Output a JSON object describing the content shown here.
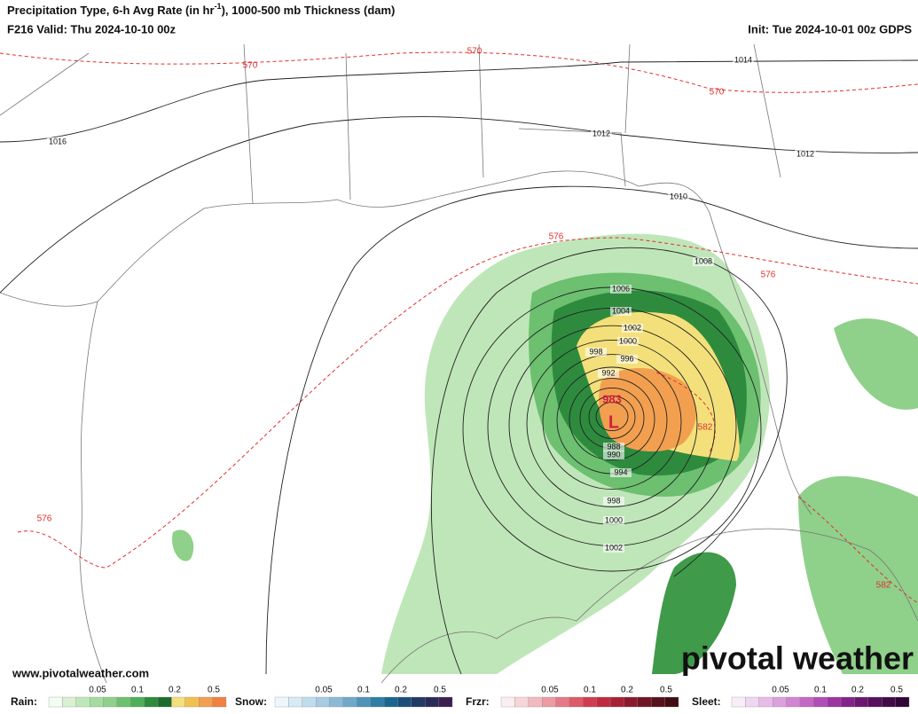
{
  "header": {
    "title": {
      "before": "Precipitation Type, 6-h Avg Rate (in hr",
      "superscript": "-1",
      "after": "), 1000-500 mb Thickness (dam)"
    },
    "valid": "F216 Valid: Thu 2024-10-10 00z",
    "init": "Init: Tue 2024-10-01 00z GDPS"
  },
  "map": {
    "isobar_labels": [
      "1016",
      "1014",
      "1012",
      "1012",
      "1010",
      "1008",
      "1006",
      "1004",
      "1002",
      "1000",
      "998",
      "996",
      "992",
      "988",
      "990",
      "994",
      "998",
      "1000",
      "1002"
    ],
    "thickness_labels": [
      "570",
      "570",
      "570",
      "576",
      "576",
      "576",
      "582",
      "582"
    ],
    "low_pressure": "983",
    "low_symbol": "L"
  },
  "footer": {
    "website": "www.pivotalweather.com",
    "logo": "pivotal weather"
  },
  "legend": [
    {
      "label": "Rain:",
      "ticks": [
        "0.05",
        "0.1",
        "0.2",
        "0.5"
      ]
    },
    {
      "label": "Snow:",
      "ticks": [
        "0.05",
        "0.1",
        "0.2",
        "0.5"
      ]
    },
    {
      "label": "Frzr:",
      "ticks": [
        "0.05",
        "0.1",
        "0.2",
        "0.5"
      ]
    },
    {
      "label": "Sleet:",
      "ticks": [
        "0.05",
        "0.1",
        "0.2",
        "0.5"
      ]
    }
  ]
}
